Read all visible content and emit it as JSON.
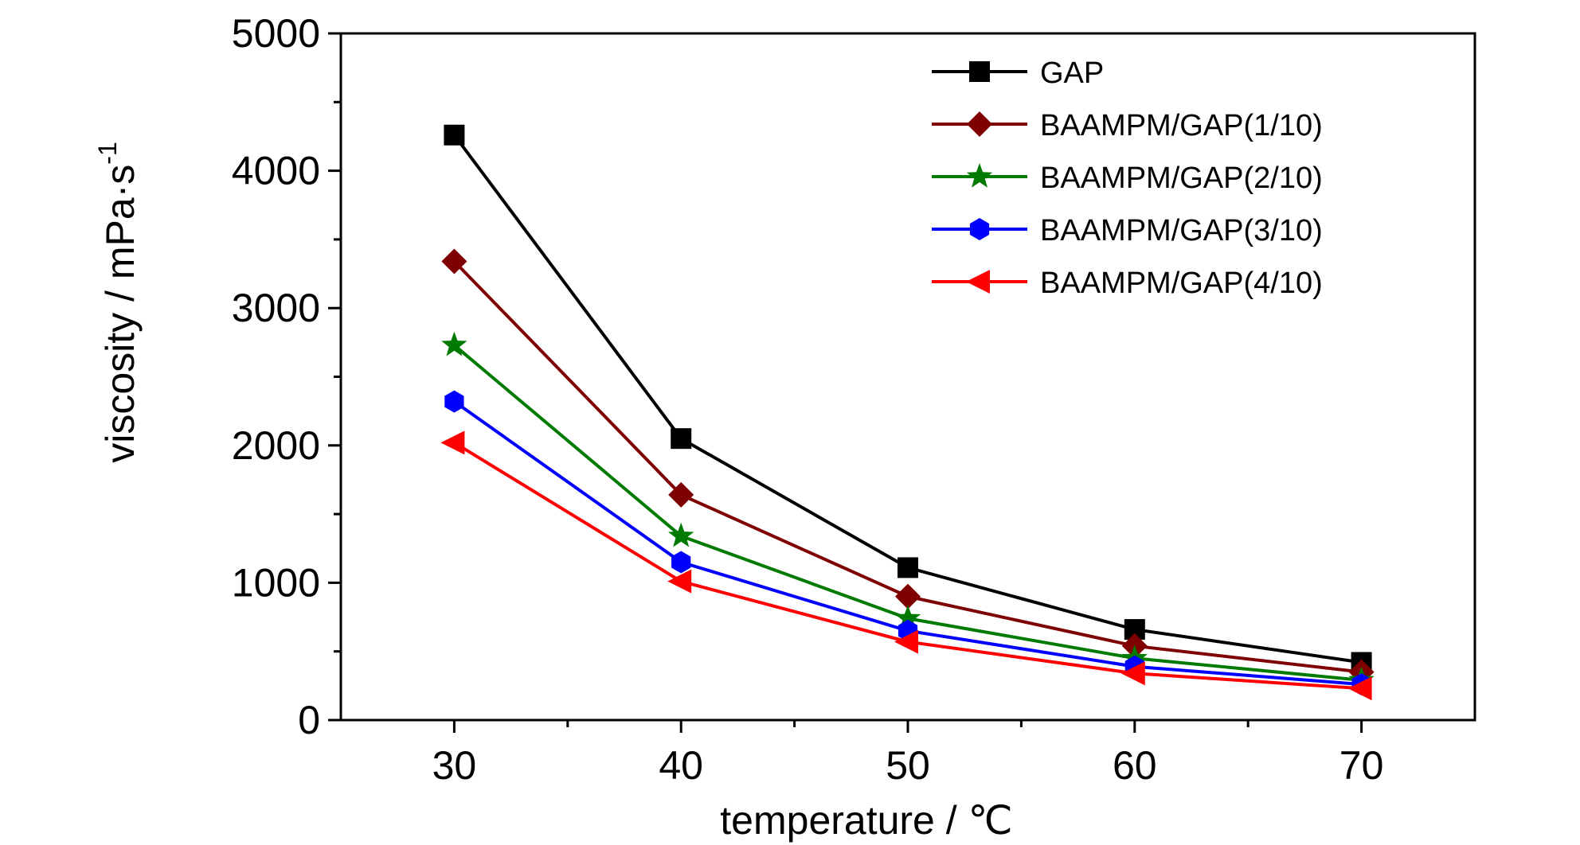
{
  "chart_data": {
    "type": "line",
    "xlabel": "temperature / ℃",
    "ylabel": "viscosity / mPa·s",
    "ylabel_superscript": "-1",
    "xlim": [
      25,
      75
    ],
    "ylim": [
      0,
      5000
    ],
    "x_ticks": [
      30,
      40,
      50,
      60,
      70
    ],
    "y_ticks": [
      0,
      1000,
      2000,
      3000,
      4000,
      5000
    ],
    "x": [
      30,
      40,
      50,
      60,
      70
    ],
    "grid": false,
    "legend_position": "top-right",
    "series": [
      {
        "name": "GAP",
        "color": "#000000",
        "marker": "square",
        "values": [
          4260,
          2050,
          1110,
          660,
          420
        ]
      },
      {
        "name": "BAAMPM/GAP(1/10)",
        "color": "#7f0000",
        "marker": "diamond",
        "values": [
          3340,
          1640,
          900,
          540,
          350
        ]
      },
      {
        "name": "BAAMPM/GAP(2/10)",
        "color": "#007a00",
        "marker": "star",
        "values": [
          2730,
          1340,
          740,
          450,
          290
        ]
      },
      {
        "name": "BAAMPM/GAP(3/10)",
        "color": "#0000ff",
        "marker": "hexagon",
        "values": [
          2320,
          1150,
          650,
          390,
          260
        ]
      },
      {
        "name": "BAAMPM/GAP(4/10)",
        "color": "#ff0000",
        "marker": "triangle-left",
        "values": [
          2020,
          1010,
          570,
          340,
          230
        ]
      }
    ]
  }
}
